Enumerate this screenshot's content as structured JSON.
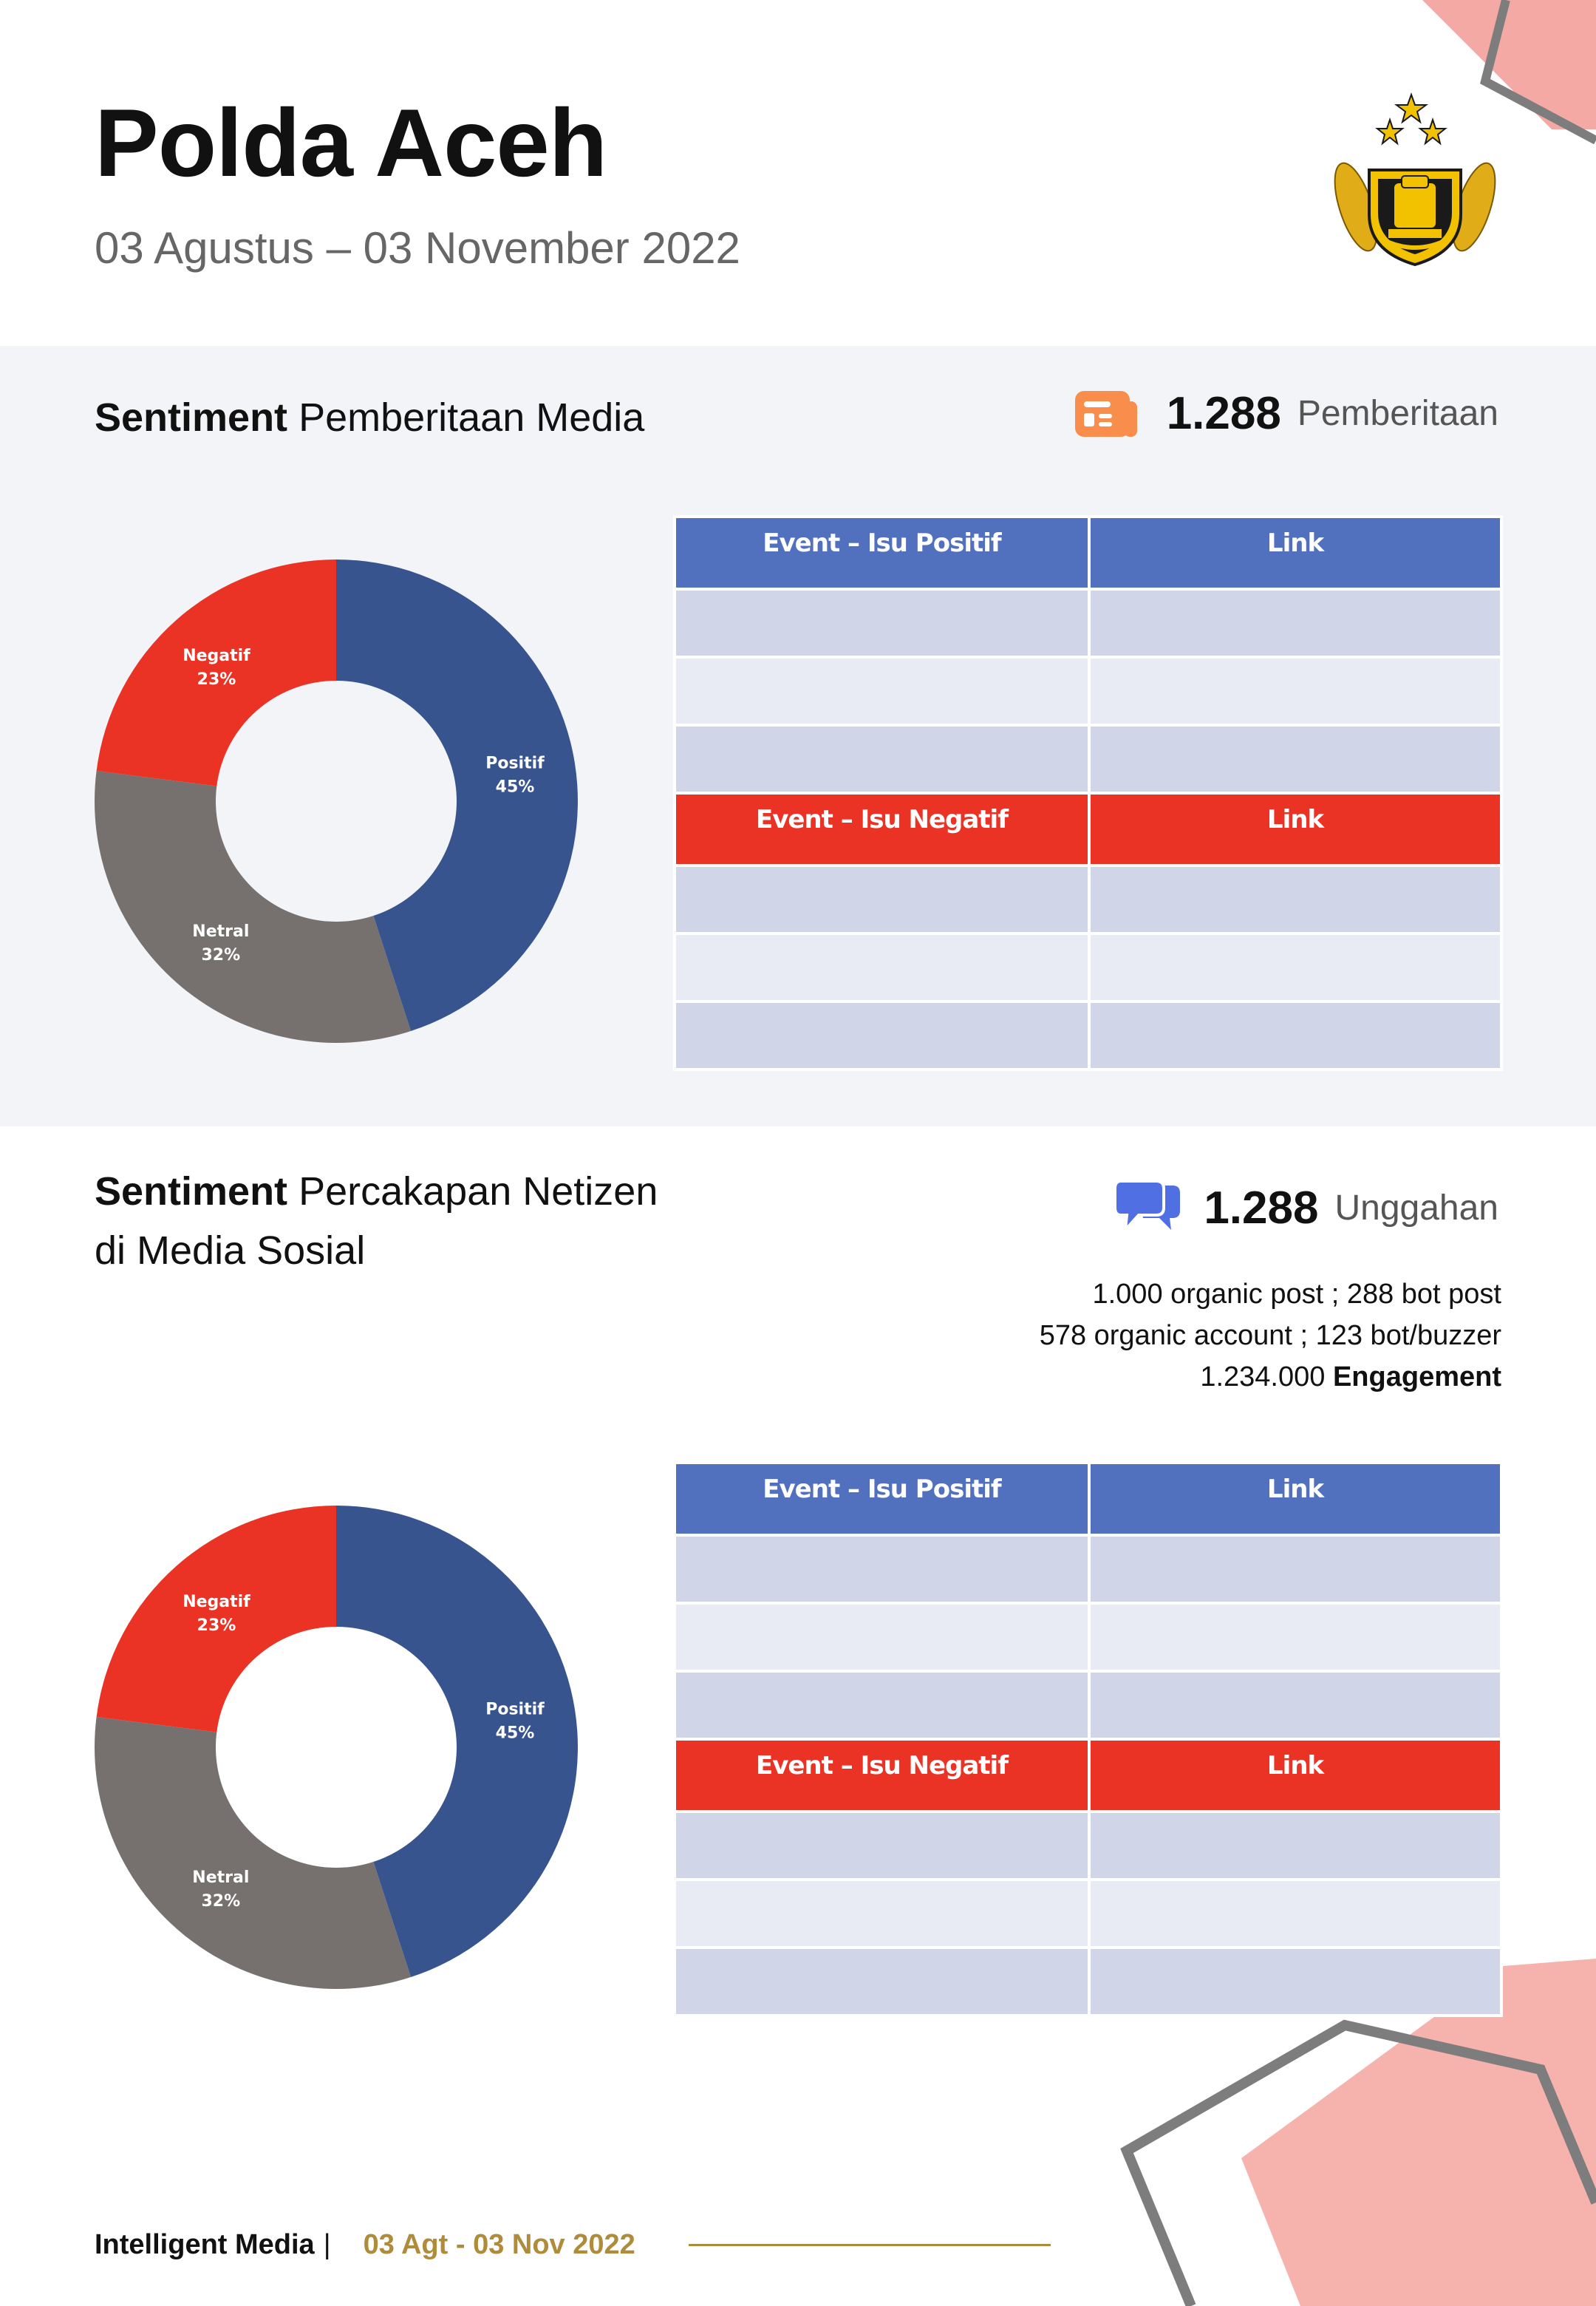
{
  "header": {
    "title": "Polda Aceh",
    "period": "03 Agustus – 03 November 2022"
  },
  "logo": {
    "icon": "police-emblem-icon"
  },
  "colors": {
    "positive": "#38548f",
    "negative": "#ea3325",
    "neutral": "#76706e",
    "header_positive": "#5170bd",
    "accent_gold": "#b08b3a",
    "decor_pink": "#f4a9a4"
  },
  "section_media": {
    "title_bold": "Sentiment",
    "title_rest": "Pemberitaan Media",
    "stat_icon": "newspaper-icon",
    "stat_value": "1.288",
    "stat_unit": "Pemberitaan",
    "table_positive": {
      "col1": "Event – Isu Positif",
      "col2": "Link"
    },
    "table_negative": {
      "col1": "Event – Isu Negatif",
      "col2": "Link"
    }
  },
  "section_social": {
    "title_bold": "Sentiment",
    "title_rest_line1": "Percakapan Netizen",
    "title_rest_line2": "di Media Sosial",
    "stat_icon": "chat-bubbles-icon",
    "stat_value": "1.288",
    "stat_unit": "Unggahan",
    "info_line1": "1.000 organic post ; 288 bot post",
    "info_line2": "578 organic account ; 123 bot/buzzer",
    "info_line3_value": "1.234.000",
    "info_line3_label": "Engagement",
    "table_positive": {
      "col1": "Event – Isu Positif",
      "col2": "Link"
    },
    "table_negative": {
      "col1": "Event – Isu Negatif",
      "col2": "Link"
    }
  },
  "chart_data": [
    {
      "type": "pie",
      "donut": true,
      "categories": [
        "Positif",
        "Netral",
        "Negatif"
      ],
      "values": [
        45,
        32,
        23
      ],
      "labels": [
        "45%",
        "32%",
        "23%"
      ]
    },
    {
      "type": "pie",
      "donut": true,
      "categories": [
        "Positif",
        "Netral",
        "Negatif"
      ],
      "values": [
        45,
        32,
        23
      ],
      "labels": [
        "45%",
        "32%",
        "23%"
      ]
    }
  ],
  "footer": {
    "brand": "Intelligent Media",
    "separator": "|",
    "date": "03 Agt - 03 Nov 2022"
  }
}
